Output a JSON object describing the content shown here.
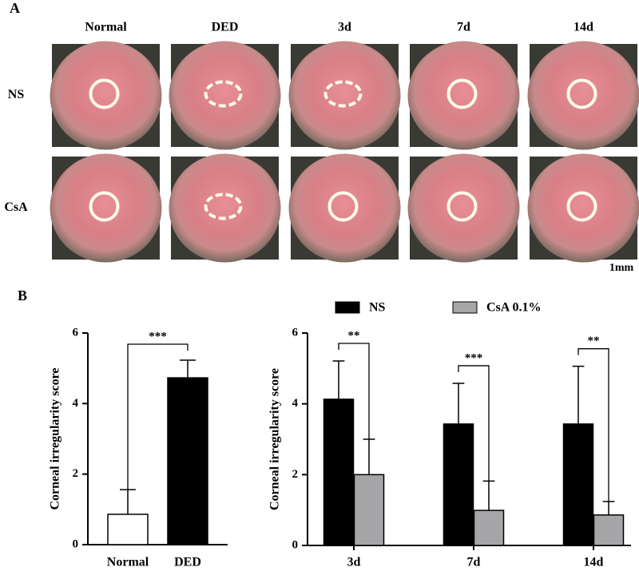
{
  "panel_a": {
    "label": "A",
    "columns": [
      "Normal",
      "DED",
      "3d",
      "7d",
      "14d"
    ],
    "rows": [
      "NS",
      "CsA"
    ],
    "scale_bar": "1mm"
  },
  "panel_b_label": "B",
  "chart_data": [
    {
      "type": "bar",
      "y_label": "Corneal irregularity score",
      "categories": [
        "Normal",
        "DED"
      ],
      "values": [
        0.86,
        4.73
      ],
      "errors": [
        0.7,
        0.5
      ],
      "colors": [
        "#ffffff",
        "#000000"
      ],
      "ylim": [
        0,
        6
      ],
      "yticks": [
        0,
        2,
        4,
        6
      ],
      "significance": "***"
    },
    {
      "type": "grouped_bar",
      "y_label": "Corneal irregularity score",
      "categories": [
        "3d",
        "7d",
        "14d"
      ],
      "series": [
        {
          "name": "NS",
          "color": "#000000",
          "values": [
            4.13,
            3.43,
            3.43
          ],
          "errors": [
            1.08,
            1.15,
            1.63
          ]
        },
        {
          "name": "CsA 0.1%",
          "color": "#a6a6a8",
          "values": [
            2.0,
            0.99,
            0.86
          ],
          "errors": [
            1.0,
            0.83,
            0.38
          ]
        }
      ],
      "ylim": [
        0,
        6
      ],
      "yticks": [
        0,
        2,
        4,
        6
      ],
      "significance": [
        "**",
        "***",
        "**"
      ]
    }
  ]
}
